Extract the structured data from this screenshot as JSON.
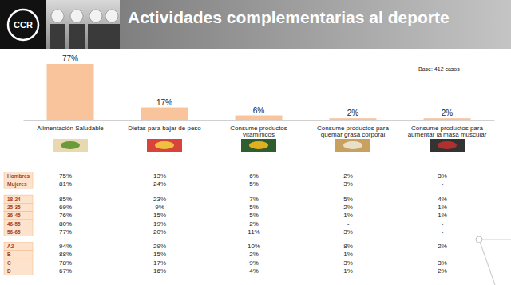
{
  "header": {
    "logo": "CCR"
  },
  "chart_data": {
    "type": "bar",
    "title": "Actividades complementarias al deporte",
    "annotations": [
      "Base: 412 casos"
    ],
    "categories": [
      "Alimentación Saludable",
      "Dietas para bajar de peso",
      "Consume productos vitamínicos",
      "Consume productos para quemar grasa corporal",
      "Consume productos para aumentar la masa muscular"
    ],
    "values": [
      77,
      17,
      6,
      2,
      2
    ],
    "value_labels": [
      "77%",
      "17%",
      "6%",
      "2%",
      "2%"
    ],
    "color": "#f9c49b",
    "data_labels": true,
    "tick_labels": "x",
    "grid": false
  },
  "table": {
    "groups": [
      {
        "rows": [
          {
            "label": "Hombres",
            "cells": [
              "75%",
              "13%",
              "6%",
              "2%",
              "3%"
            ]
          },
          {
            "label": "Mujeres",
            "cells": [
              "81%",
              "24%",
              "5%",
              "3%",
              "-"
            ]
          }
        ]
      },
      {
        "rows": [
          {
            "label": "18-24",
            "cells": [
              "85%",
              "23%",
              "7%",
              "5%",
              "4%"
            ]
          },
          {
            "label": "25-35",
            "cells": [
              "69%",
              "9%",
              "5%",
              "2%",
              "1%"
            ]
          },
          {
            "label": "36-45",
            "cells": [
              "76%",
              "15%",
              "5%",
              "1%",
              "1%"
            ]
          },
          {
            "label": "46-55",
            "cells": [
              "80%",
              "19%",
              "2%",
              "-",
              "-"
            ]
          },
          {
            "label": "56-65",
            "cells": [
              "77%",
              "20%",
              "11%",
              "3%",
              "-"
            ]
          }
        ]
      },
      {
        "rows": [
          {
            "label": "A2",
            "cells": [
              "94%",
              "29%",
              "10%",
              "8%",
              "2%"
            ]
          },
          {
            "label": "B",
            "cells": [
              "88%",
              "15%",
              "2%",
              "1%",
              "-"
            ]
          },
          {
            "label": "C",
            "cells": [
              "78%",
              "17%",
              "9%",
              "3%",
              "3%"
            ]
          },
          {
            "label": "D",
            "cells": [
              "67%",
              "16%",
              "4%",
              "1%",
              "2%"
            ]
          }
        ]
      }
    ]
  }
}
